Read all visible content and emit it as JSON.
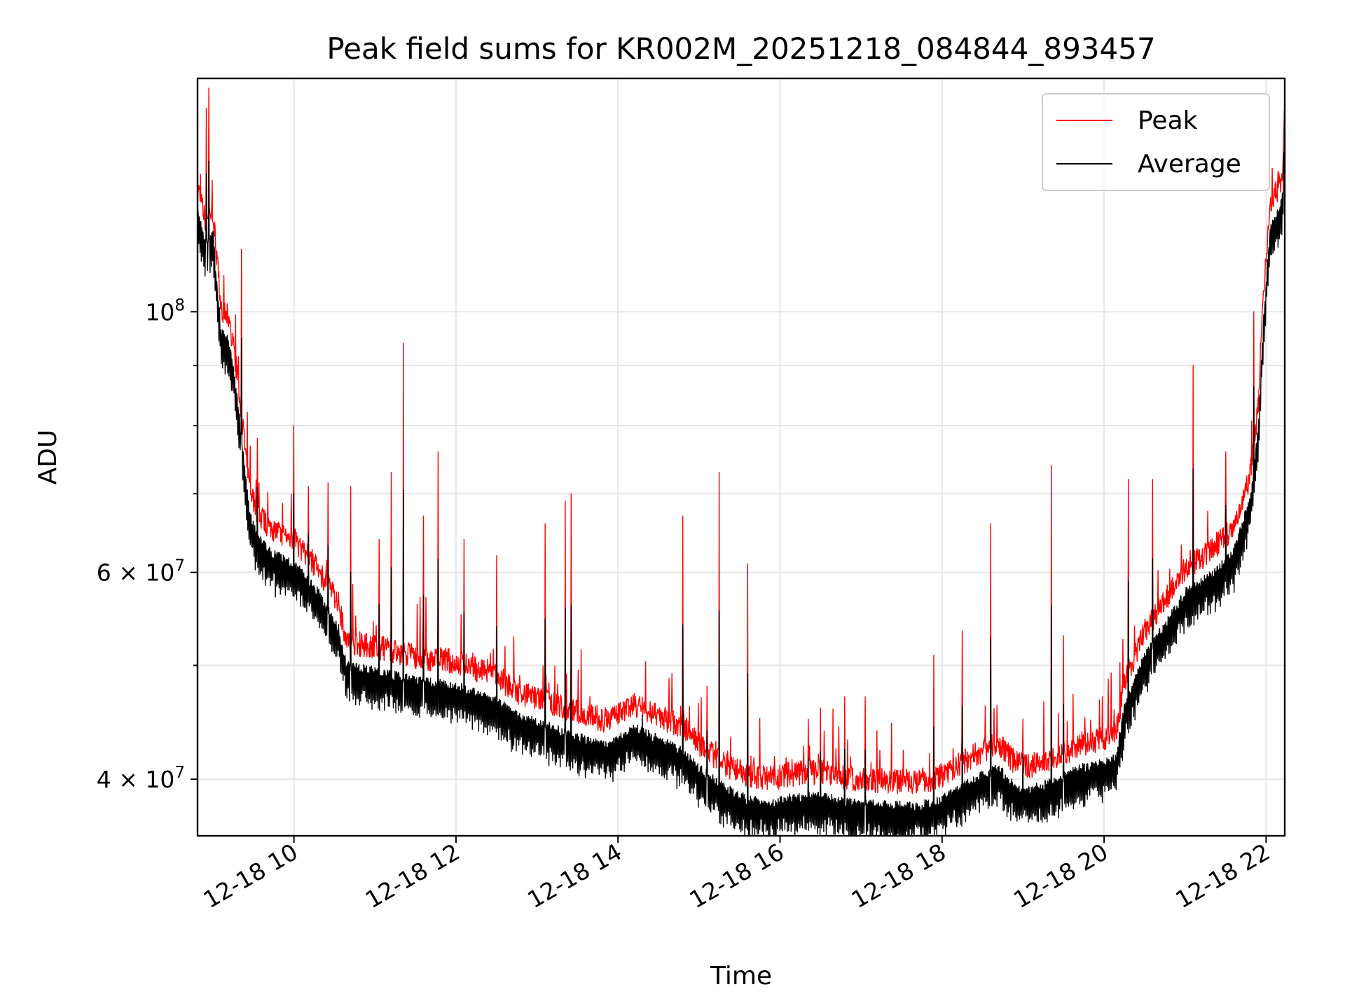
{
  "chart_data": {
    "type": "line",
    "title": "Peak field sums for KR002M_20251218_084844_893457",
    "xlabel": "Time",
    "ylabel": "ADU",
    "yscale": "log",
    "xlim": [
      8.81,
      22.23
    ],
    "ylim": [
      35800000,
      158000000
    ],
    "x_tick_values": [
      10,
      12,
      14,
      16,
      18,
      20,
      22
    ],
    "x_tick_labels": [
      "12-18 10",
      "12-18 12",
      "12-18 14",
      "12-18 16",
      "12-18 18",
      "12-18 20",
      "12-18 22"
    ],
    "y_major_ticks": [
      {
        "value": 40000000,
        "mantissa": "4",
        "times": "×",
        "base": "10",
        "exp": "7"
      },
      {
        "value": 60000000,
        "mantissa": "6",
        "times": "×",
        "base": "10",
        "exp": "7"
      },
      {
        "value": 100000000,
        "mantissa": "",
        "times": "",
        "base": "10",
        "exp": "8"
      }
    ],
    "y_minor_ticks": [
      50000000,
      70000000,
      80000000,
      90000000
    ],
    "legend": {
      "position": "top-right",
      "entries": [
        "Peak",
        "Average"
      ]
    },
    "series": [
      {
        "name": "Peak",
        "color": "#ff0000",
        "baseline": {
          "x": [
            8.81,
            8.9,
            9.0,
            9.1,
            9.2,
            9.3,
            9.45,
            9.55,
            9.7,
            10.0,
            10.3,
            10.55,
            10.65,
            11.0,
            11.5,
            12.0,
            12.5,
            12.8,
            13.2,
            13.6,
            13.9,
            14.2,
            14.5,
            14.8,
            15.0,
            15.3,
            15.6,
            15.9,
            16.2,
            16.5,
            16.8,
            17.2,
            17.6,
            17.9,
            18.2,
            18.5,
            18.7,
            18.9,
            19.1,
            19.4,
            19.7,
            20.0,
            20.15,
            20.25,
            20.5,
            20.8,
            21.0,
            21.3,
            21.6,
            21.8,
            21.9,
            21.96,
            22.05,
            22.12,
            22.2,
            22.23
          ],
          "y": [
            127000000,
            119000000,
            121000000,
            100000000,
            98000000,
            88000000,
            70000000,
            67000000,
            65000000,
            63500000,
            60000000,
            56000000,
            52000000,
            51500000,
            50500000,
            50000000,
            48500000,
            47000000,
            46000000,
            45000000,
            44500000,
            46000000,
            45000000,
            44000000,
            42500000,
            41000000,
            40000000,
            39800000,
            40200000,
            40300000,
            39800000,
            39600000,
            39500000,
            39700000,
            40800000,
            42000000,
            42500000,
            41000000,
            40800000,
            41500000,
            42500000,
            43000000,
            43500000,
            48000000,
            53000000,
            57000000,
            60000000,
            62000000,
            65000000,
            72000000,
            82000000,
            100000000,
            123000000,
            125000000,
            130000000,
            150000000
          ]
        },
        "spikes": [
          {
            "x": 8.92,
            "y": 149000000
          },
          {
            "x": 8.95,
            "y": 155000000
          },
          {
            "x": 9.35,
            "y": 113000000
          },
          {
            "x": 9.55,
            "y": 78000000
          },
          {
            "x": 10.0,
            "y": 80000000
          },
          {
            "x": 10.18,
            "y": 71000000
          },
          {
            "x": 10.42,
            "y": 71500000
          },
          {
            "x": 10.7,
            "y": 71000000
          },
          {
            "x": 11.05,
            "y": 64000000
          },
          {
            "x": 11.2,
            "y": 73000000
          },
          {
            "x": 11.35,
            "y": 94000000
          },
          {
            "x": 11.6,
            "y": 67000000
          },
          {
            "x": 11.78,
            "y": 76000000
          },
          {
            "x": 12.1,
            "y": 64000000
          },
          {
            "x": 12.5,
            "y": 62000000
          },
          {
            "x": 13.1,
            "y": 66000000
          },
          {
            "x": 13.35,
            "y": 69000000
          },
          {
            "x": 13.42,
            "y": 70000000
          },
          {
            "x": 14.3,
            "y": 47000000
          },
          {
            "x": 14.8,
            "y": 67000000
          },
          {
            "x": 15.1,
            "y": 48000000
          },
          {
            "x": 15.25,
            "y": 73000000
          },
          {
            "x": 15.6,
            "y": 61000000
          },
          {
            "x": 16.35,
            "y": 45000000
          },
          {
            "x": 16.5,
            "y": 46000000
          },
          {
            "x": 16.8,
            "y": 47000000
          },
          {
            "x": 17.05,
            "y": 47000000
          },
          {
            "x": 17.9,
            "y": 51000000
          },
          {
            "x": 18.25,
            "y": 53500000
          },
          {
            "x": 18.6,
            "y": 66000000
          },
          {
            "x": 19.0,
            "y": 45000000
          },
          {
            "x": 19.35,
            "y": 74000000
          },
          {
            "x": 19.5,
            "y": 53000000
          },
          {
            "x": 20.3,
            "y": 72000000
          },
          {
            "x": 20.6,
            "y": 72000000
          },
          {
            "x": 21.1,
            "y": 90000000
          },
          {
            "x": 21.5,
            "y": 76000000
          },
          {
            "x": 21.85,
            "y": 100000000
          }
        ]
      },
      {
        "name": "Average",
        "color": "#000000",
        "ratio_to_peak": 0.96,
        "dip_depth": 0.07,
        "spike_ratio": 0.8
      }
    ]
  }
}
